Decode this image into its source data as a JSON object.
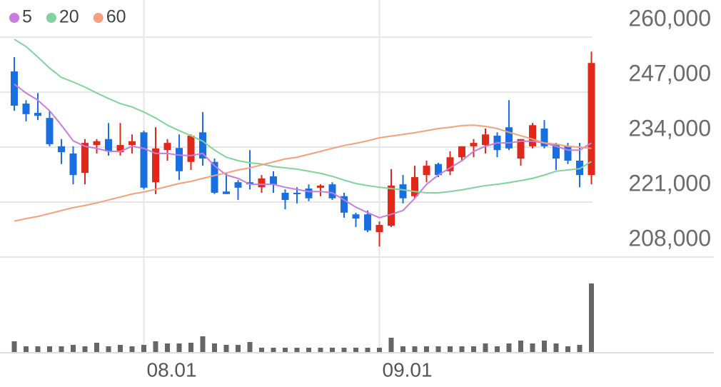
{
  "chart_data": {
    "type": "candlestick",
    "categories": [
      null,
      null,
      null,
      null,
      null,
      null,
      null,
      null,
      null,
      null,
      null,
      "08.01",
      null,
      null,
      null,
      null,
      null,
      null,
      null,
      null,
      null,
      null,
      null,
      null,
      null,
      null,
      null,
      null,
      null,
      null,
      null,
      "09.01",
      null,
      null,
      null,
      null,
      null,
      null,
      null,
      null,
      null,
      null,
      null,
      null,
      null,
      null,
      null,
      null,
      null,
      null
    ],
    "open": [
      251900,
      244300,
      242100,
      240900,
      234200,
      232500,
      227900,
      234500,
      235900,
      232800,
      234500,
      237500,
      225700,
      233300,
      233800,
      230500,
      237500,
      230500,
      223500,
      225700,
      225700,
      224500,
      227100,
      223200,
      223200,
      224200,
      224400,
      225200,
      222400,
      218100,
      218100,
      213900,
      215400,
      225200,
      222400,
      227400,
      230000,
      228300,
      231600,
      234200,
      234500,
      236700,
      238700,
      231300,
      234200,
      238400,
      234700,
      234200,
      230800,
      227400
    ],
    "high": [
      255300,
      245100,
      246800,
      242600,
      235900,
      234200,
      235900,
      235900,
      239700,
      239700,
      237000,
      237900,
      238700,
      235900,
      237000,
      237000,
      242300,
      231300,
      227900,
      226200,
      233300,
      227400,
      228300,
      224000,
      224500,
      225200,
      225200,
      225700,
      223200,
      218500,
      219000,
      216400,
      228800,
      227400,
      229600,
      230800,
      230300,
      233000,
      234200,
      235900,
      238400,
      237500,
      245100,
      235900,
      239700,
      240400,
      235000,
      235000,
      235000,
      256600
    ],
    "low": [
      242600,
      240100,
      240400,
      234200,
      230000,
      225200,
      225200,
      232500,
      232000,
      232000,
      232500,
      224000,
      222900,
      230800,
      226200,
      228600,
      229600,
      222900,
      222900,
      221500,
      224000,
      223200,
      223200,
      219300,
      220700,
      221200,
      222400,
      221500,
      217300,
      215100,
      213900,
      210500,
      215100,
      220700,
      221900,
      225700,
      226900,
      227400,
      230800,
      231600,
      232500,
      231600,
      233300,
      229600,
      233700,
      233700,
      228600,
      230000,
      224500,
      225200
    ],
    "close": [
      243800,
      241800,
      241400,
      234700,
      232800,
      227400,
      235000,
      235400,
      233000,
      234500,
      235400,
      224400,
      233700,
      235000,
      228300,
      236700,
      231300,
      223200,
      222900,
      224400,
      225200,
      226600,
      225200,
      221500,
      222900,
      221900,
      224900,
      221900,
      218500,
      217100,
      214300,
      215600,
      224900,
      221900,
      226900,
      229600,
      227400,
      231600,
      234200,
      235000,
      237000,
      233300,
      233700,
      235900,
      239200,
      234200,
      231300,
      230800,
      227400,
      253900
    ],
    "volume": [
      15,
      8,
      8,
      8,
      8,
      10,
      8,
      13,
      8,
      10,
      8,
      10,
      15,
      12,
      12,
      13,
      22,
      12,
      10,
      10,
      14,
      6,
      6,
      6,
      6,
      6,
      6,
      6,
      6,
      6,
      6,
      6,
      20,
      8,
      8,
      8,
      8,
      8,
      8,
      8,
      12,
      8,
      12,
      16,
      12,
      16,
      12,
      8,
      10,
      96
    ],
    "up_color": "#e0291b",
    "down_color": "#1a6fe0",
    "volume_color": "#666666",
    "series": [
      {
        "name": "5",
        "color": "#c77de0",
        "values": [
          248900,
          246800,
          245100,
          242600,
          239200,
          235500,
          234200,
          233700,
          233000,
          233000,
          234200,
          233700,
          232500,
          232500,
          232100,
          232000,
          232500,
          229600,
          227400,
          226600,
          225200,
          225200,
          225200,
          224500,
          224000,
          223500,
          223500,
          223200,
          221500,
          219800,
          218500,
          217300,
          218100,
          219000,
          221900,
          225200,
          227400,
          229100,
          230800,
          233000,
          234200,
          235000,
          235000,
          235400,
          235400,
          235000,
          234200,
          233300,
          233300,
          235000
        ]
      },
      {
        "name": "20",
        "color": "#7ed49a",
        "values": [
          259500,
          257800,
          255300,
          252700,
          250500,
          249400,
          248200,
          246800,
          245500,
          244300,
          243500,
          242300,
          240900,
          239200,
          237900,
          236700,
          235400,
          233300,
          231600,
          230800,
          230300,
          230000,
          229400,
          229100,
          228800,
          228300,
          227800,
          227100,
          226200,
          225400,
          224900,
          224500,
          224200,
          223900,
          223500,
          223200,
          223200,
          223500,
          223900,
          224400,
          224900,
          225200,
          225600,
          226100,
          226600,
          227400,
          228300,
          228600,
          228900,
          230600
        ]
      },
      {
        "name": "60",
        "color": "#f5a07a",
        "values": [
          216500,
          217100,
          217600,
          218300,
          219000,
          219700,
          220200,
          220800,
          221500,
          222200,
          222900,
          223400,
          224000,
          224700,
          225400,
          225900,
          226600,
          227300,
          227900,
          228600,
          229100,
          229800,
          230500,
          231200,
          231600,
          232300,
          233000,
          233700,
          234400,
          234900,
          235500,
          236200,
          236600,
          237000,
          237400,
          237900,
          238400,
          238700,
          239100,
          239200,
          238900,
          238400,
          237500,
          236700,
          235900,
          235000,
          234700,
          234200,
          234000,
          233700
        ]
      }
    ],
    "ylim": [
      208000,
      268800
    ],
    "yticks": [
      {
        "value": 208000,
        "label": "208,000"
      },
      {
        "value": 221000,
        "label": "221,000"
      },
      {
        "value": 234000,
        "label": "234,000"
      },
      {
        "value": 247000,
        "label": "247,000"
      },
      {
        "value": 260000,
        "label": "260,000"
      }
    ],
    "grid": true
  }
}
